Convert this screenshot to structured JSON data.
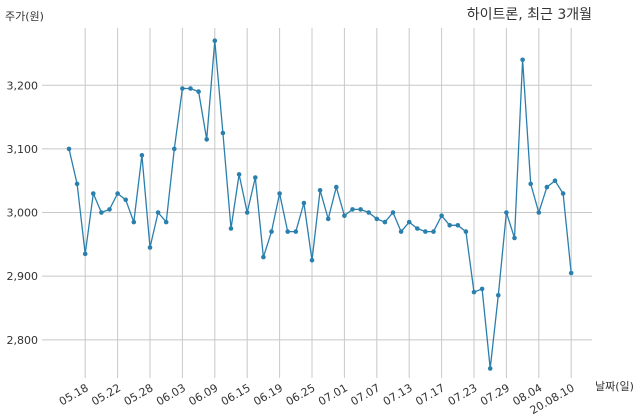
{
  "chart_data": {
    "type": "line",
    "title": "하이트론, 최근 3개월",
    "ylabel": "주가(원)",
    "xlabel": "날짜(일)",
    "ylim": [
      2740,
      3290
    ],
    "yticks": [
      2800,
      2900,
      3000,
      3100,
      3200
    ],
    "ytick_labels": [
      "2,800",
      "2,900",
      "3,000",
      "3,100",
      "3,200"
    ],
    "xtick_labels": [
      "05.18",
      "05.22",
      "05.28",
      "06.03",
      "06.09",
      "06.15",
      "06.19",
      "06.25",
      "07.01",
      "07.07",
      "07.13",
      "07.17",
      "07.23",
      "07.29",
      "08.04",
      "20.08.10"
    ],
    "xtick_index": [
      2,
      6,
      10,
      14,
      18,
      22,
      26,
      30,
      34,
      38,
      42,
      46,
      50,
      54,
      58,
      62
    ],
    "grid": true,
    "line_color": "#2a7fad",
    "values": [
      3100,
      3045,
      2935,
      3030,
      3000,
      3005,
      3030,
      3020,
      2985,
      3090,
      2945,
      3000,
      2985,
      3100,
      3195,
      3195,
      3190,
      3115,
      3270,
      3125,
      2975,
      3060,
      3000,
      3055,
      2930,
      2970,
      3030,
      2970,
      2970,
      3015,
      2925,
      3035,
      2990,
      3040,
      2995,
      3005,
      3005,
      3000,
      2990,
      2985,
      3000,
      2970,
      2985,
      2975,
      2970,
      2970,
      2995,
      2980,
      2980,
      2970,
      2875,
      2880,
      2755,
      2870,
      3000,
      2960,
      3240,
      3045,
      3000,
      3040,
      3050,
      3030,
      2905
    ]
  }
}
